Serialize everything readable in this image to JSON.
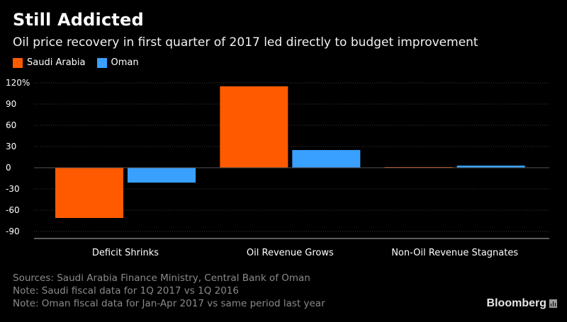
{
  "header": {
    "title": "Still Addicted",
    "subtitle": "Oil price recovery in first quarter of 2017 led directly to budget improvement"
  },
  "legend": [
    {
      "label": "Saudi Arabia",
      "color": "#ff5a00"
    },
    {
      "label": "Oman",
      "color": "#3aa0ff"
    }
  ],
  "chart_data": {
    "type": "bar",
    "categories": [
      "Deficit Shrinks",
      "Oil Revenue Grows",
      "Non-Oil Revenue Stagnates"
    ],
    "series": [
      {
        "name": "Saudi Arabia",
        "color": "#ff5a00",
        "values": [
          -71,
          115,
          1
        ]
      },
      {
        "name": "Oman",
        "color": "#3aa0ff",
        "values": [
          -21,
          25,
          3
        ]
      }
    ],
    "y_ticks": [
      "120%",
      "90",
      "60",
      "30",
      "0",
      "-30",
      "-60",
      "-90"
    ],
    "y_tick_values": [
      120,
      90,
      60,
      30,
      0,
      -30,
      -60,
      -90
    ],
    "ylim": [
      -100,
      120
    ],
    "grid": true,
    "legend_position": "top-left"
  },
  "footer": {
    "sources": "Sources: Saudi Arabia Finance Ministry, Central Bank of Oman",
    "note1": "Note: Saudi fiscal data for 1Q 2017 vs 1Q 2016",
    "note2": "Note: Oman fiscal data for Jan-Apr 2017 vs same period last year"
  },
  "brand": {
    "name": "Bloomberg"
  }
}
